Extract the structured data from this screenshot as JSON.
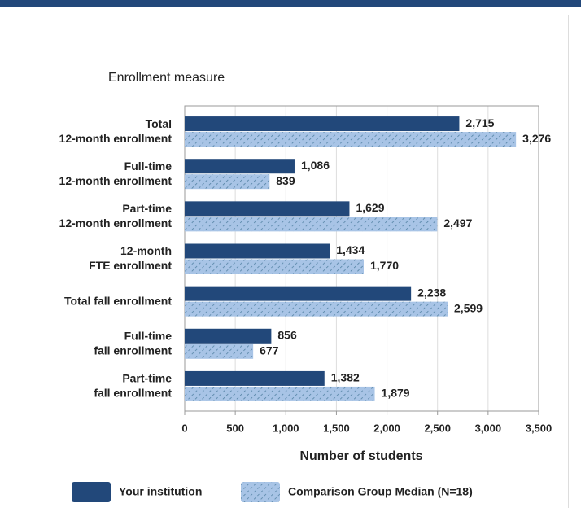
{
  "chart_data": {
    "type": "hbar",
    "title": "Enrollment measure",
    "xlabel": "Number of students",
    "categories": [
      [
        "Total",
        "12-month enrollment"
      ],
      [
        "Full-time",
        "12-month enrollment"
      ],
      [
        "Part-time",
        "12-month enrollment"
      ],
      [
        "12-month",
        "FTE enrollment"
      ],
      [
        "Total fall enrollment"
      ],
      [
        "Full-time",
        "fall enrollment"
      ],
      [
        "Part-time",
        "fall enrollment"
      ]
    ],
    "series": [
      {
        "name": "Your institution",
        "color": "#22487a",
        "values": [
          2715,
          1086,
          1629,
          1434,
          2238,
          856,
          1382
        ],
        "value_labels": [
          "2,715",
          "1,086",
          "1,629",
          "1,434",
          "2,238",
          "856",
          "1,382"
        ]
      },
      {
        "name": "Comparison Group Median (N=18)",
        "color": "#a8c4e6",
        "hatch": true,
        "values": [
          3276,
          839,
          2497,
          1770,
          2599,
          677,
          1879
        ],
        "value_labels": [
          "3,276",
          "839",
          "2,497",
          "1,770",
          "2,599",
          "677",
          "1,879"
        ]
      }
    ],
    "xlim": [
      0,
      3500
    ],
    "xticks": [
      0,
      500,
      {
        "value": 1000,
        "label": "1,000"
      },
      {
        "value": 1500,
        "label": "1,500"
      },
      {
        "value": 2000,
        "label": "2,000"
      },
      {
        "value": 2500,
        "label": "2,500"
      },
      {
        "value": 3000,
        "label": "3,000"
      },
      {
        "value": 3500,
        "label": "3,500"
      }
    ],
    "grid": true
  }
}
